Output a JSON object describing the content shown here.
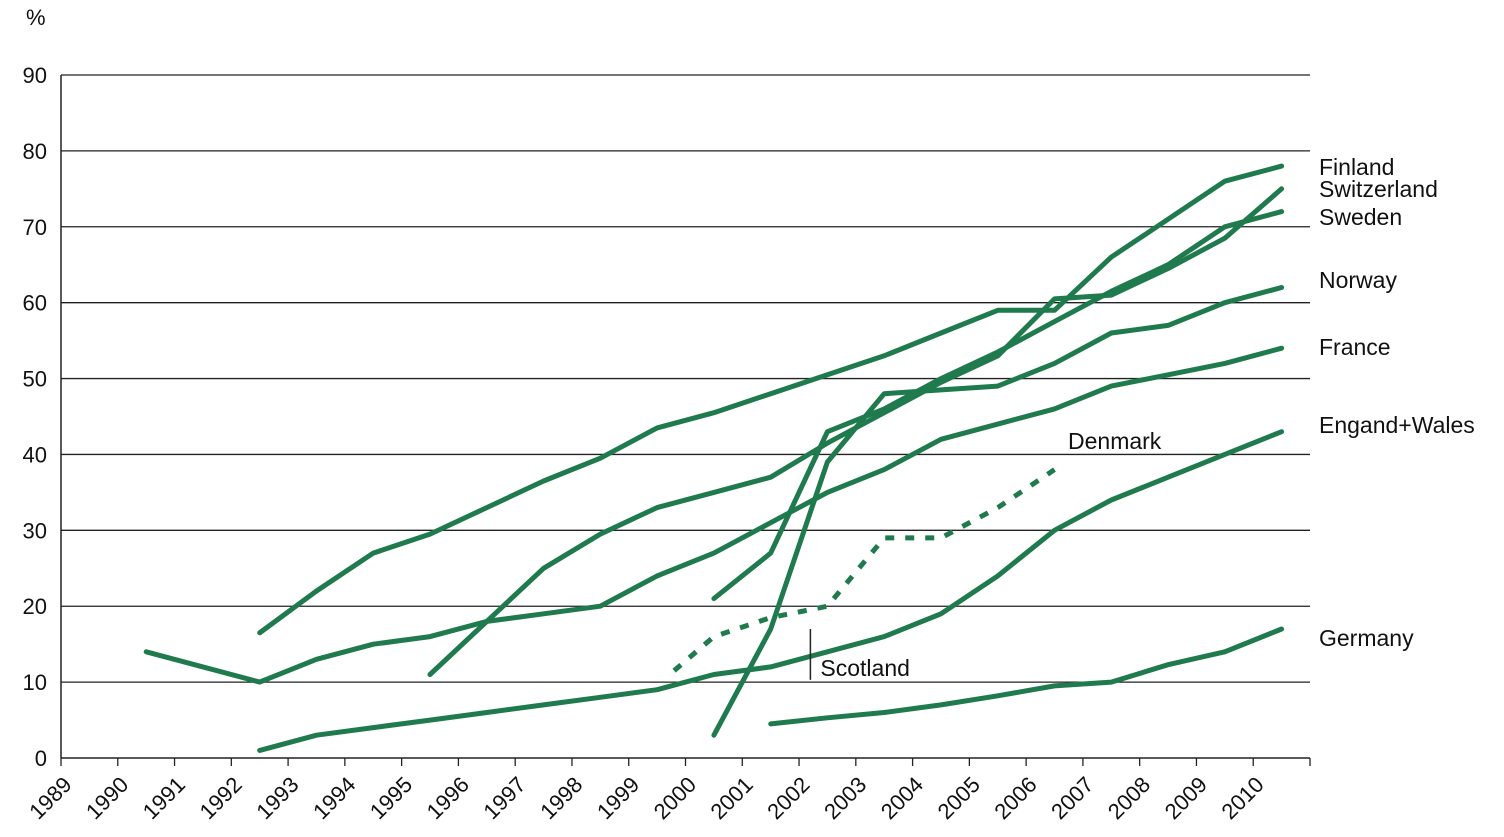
{
  "chart_data": {
    "type": "line",
    "title": "",
    "y_unit": "%",
    "xlabel": "",
    "ylabel": "",
    "ylim": [
      0,
      90
    ],
    "y_ticks": [
      "0",
      "10",
      "20",
      "30",
      "40",
      "50",
      "60",
      "70",
      "80",
      "90"
    ],
    "x_ticks": [
      "1989",
      "1990",
      "1991",
      "1992",
      "1993",
      "1994",
      "1995",
      "1996",
      "1997",
      "1998",
      "1999",
      "2000",
      "2001",
      "2002",
      "2003",
      "2004",
      "2005",
      "2006",
      "2007",
      "2008",
      "2009",
      "2010"
    ],
    "grid": "horizontal",
    "line_color": "#1f7a4d",
    "series": [
      {
        "name": "Finland",
        "style": "solid",
        "x": [
          1992.5,
          1993.5,
          1994.5,
          1995.5,
          1996.5,
          1997.5,
          1998.5,
          1999.5,
          2000.5,
          2001.5,
          2002.5,
          2003.5,
          2004.5,
          2005.5,
          2006.5,
          2007.5,
          2008.5,
          2009.5,
          2010.5
        ],
        "y": [
          16.5,
          22,
          27,
          29.5,
          33,
          36.5,
          39.5,
          43.5,
          45.5,
          48,
          50.5,
          53,
          56,
          59,
          59,
          66,
          71,
          76,
          78
        ]
      },
      {
        "name": "Switzerland",
        "style": "solid",
        "x": [
          2000.5,
          2001.5,
          2002.5,
          2003.5,
          2004.5,
          2005.5,
          2006.5,
          2007.5,
          2008.5,
          2009.5,
          2010.5
        ],
        "y": [
          3,
          17,
          39,
          48,
          48.5,
          49,
          52,
          56,
          57,
          60,
          62
        ]
      },
      {
        "name": "Sweden",
        "style": "solid",
        "x": [
          2000.5,
          2001.5,
          2002.5,
          2003.5,
          2004.5,
          2005.5,
          2006.5,
          2007.5,
          2008.5,
          2009.5,
          2010.5
        ],
        "y": [
          21,
          27,
          43,
          46,
          50,
          53.5,
          57.5,
          61.5,
          65,
          70,
          72
        ]
      },
      {
        "name": "Norway",
        "style": "solid",
        "x": [
          1995.5,
          1996.5,
          1997.5,
          1998.5,
          1999.5,
          2000.5,
          2001.5,
          2002.5,
          2003.5,
          2004.5,
          2005.5,
          2006.5,
          2007.5,
          2008.5,
          2009.5,
          2010.5
        ],
        "y": [
          11,
          18,
          25,
          29.5,
          33,
          35,
          37,
          41.5,
          45.5,
          49.5,
          53,
          60.5,
          61,
          64.5,
          68.5,
          75
        ]
      },
      {
        "name": "France",
        "style": "solid",
        "x": [
          1990.5,
          1992.5,
          1993.5,
          1994.5,
          1995.5,
          1996.5,
          1997.5,
          1998.5,
          1999.5,
          2000.5,
          2001.5,
          2002.5,
          2003.5,
          2004.5,
          2005.5,
          2006.5,
          2007.5,
          2008.5,
          2009.5,
          2010.5
        ],
        "y": [
          14,
          10,
          13,
          15,
          16,
          18,
          19,
          20,
          24,
          27,
          31,
          35,
          38,
          42,
          44,
          46,
          49,
          50.5,
          52,
          54
        ]
      },
      {
        "name": "Engand+Wales",
        "style": "solid",
        "x": [
          1992.5,
          1993.5,
          1994.5,
          1995.5,
          1996.5,
          1997.5,
          1998.5,
          1999.5,
          2000.5,
          2001.5,
          2002.5,
          2003.5,
          2004.5,
          2005.5,
          2006.5,
          2007.5,
          2008.5,
          2009.5,
          2010.5
        ],
        "y": [
          1,
          3,
          4,
          5,
          6,
          7,
          8,
          9,
          11,
          12,
          14,
          16,
          19,
          24,
          30,
          34,
          37,
          40,
          43
        ]
      },
      {
        "name": "Germany",
        "style": "solid",
        "x": [
          2001.5,
          2002.5,
          2003.5,
          2004.5,
          2005.5,
          2006.5,
          2007.5,
          2008.5,
          2009.5,
          2010.5
        ],
        "y": [
          4.5,
          5.3,
          6,
          7,
          8.2,
          9.5,
          10,
          12.3,
          14,
          17
        ]
      },
      {
        "name": "Denmark",
        "style": "dotted",
        "x": [
          1999.8,
          2000.5,
          2001.5,
          2002.5,
          2003.5,
          2004.5,
          2005.5,
          2006.5
        ],
        "y": [
          11.5,
          16,
          18.5,
          20,
          29,
          29,
          33,
          38
        ]
      }
    ],
    "annotations": [
      {
        "text": "Scotland",
        "x": 2002.2,
        "y": 13,
        "marker": "vertical-line"
      }
    ]
  }
}
